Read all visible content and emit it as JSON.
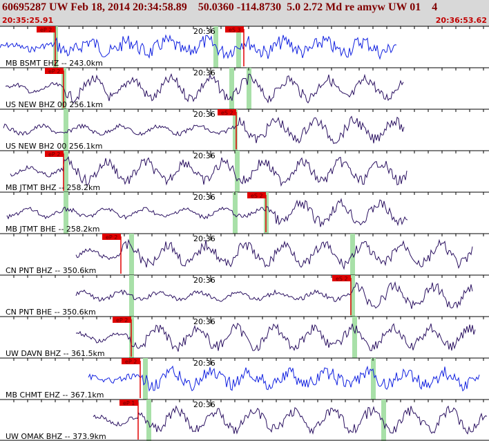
{
  "header": {
    "title": "60695287 UW Feb 18, 2014 20:34:58.89    50.0360 -114.8730  5.0 2.72 Md re amyw UW 01    4",
    "start_time": "20:35:25.91",
    "end_time": "20:36:53.62"
  },
  "traces": [
    {
      "label": "MB BSMT EHZ -- 243.0km",
      "time_label": "20:36",
      "picks": [
        "eP 2",
        "eS 3"
      ]
    },
    {
      "label": "US NEW BHZ 00 256.1km",
      "time_label": "20:36",
      "picks": [
        "eP 2"
      ]
    },
    {
      "label": "US NEW BH2 00 256.1km",
      "time_label": "20:36",
      "picks": [
        "eS 2"
      ]
    },
    {
      "label": "MB JTMT BHZ -- 258.2km",
      "time_label": "20:36",
      "picks": [
        "eP 2"
      ]
    },
    {
      "label": "MB JTMT BHE -- 258.2km",
      "time_label": "20:36",
      "picks": [
        "eS 2"
      ]
    },
    {
      "label": "CN PNT BHZ -- 350.6km",
      "time_label": "20:36",
      "picks": [
        "eP 2"
      ]
    },
    {
      "label": "CN PNT BHE -- 350.6km",
      "time_label": "20:36",
      "picks": [
        "eS 2"
      ]
    },
    {
      "label": "UW DAVN BHZ -- 361.5km",
      "time_label": "20:36",
      "picks": [
        "eP 2"
      ]
    },
    {
      "label": "MB CHMT EHZ -- 367.1km",
      "time_label": "20:36",
      "picks": [
        "eP 2"
      ]
    },
    {
      "label": "UW OMAK BHZ -- 373.9km",
      "time_label": "20:36",
      "picks": [
        "eP 1"
      ]
    }
  ]
}
